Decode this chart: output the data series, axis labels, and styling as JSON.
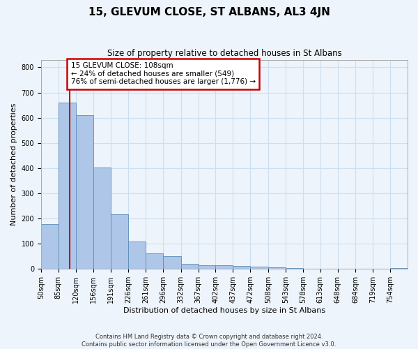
{
  "title": "15, GLEVUM CLOSE, ST ALBANS, AL3 4JN",
  "subtitle": "Size of property relative to detached houses in St Albans",
  "xlabel": "Distribution of detached houses by size in St Albans",
  "ylabel": "Number of detached properties",
  "footer_line1": "Contains HM Land Registry data © Crown copyright and database right 2024.",
  "footer_line2": "Contains public sector information licensed under the Open Government Licence v3.0.",
  "bin_labels": [
    "50sqm",
    "85sqm",
    "120sqm",
    "156sqm",
    "191sqm",
    "226sqm",
    "261sqm",
    "296sqm",
    "332sqm",
    "367sqm",
    "402sqm",
    "437sqm",
    "472sqm",
    "508sqm",
    "543sqm",
    "578sqm",
    "613sqm",
    "648sqm",
    "684sqm",
    "719sqm",
    "754sqm"
  ],
  "bin_edges": [
    50,
    85,
    120,
    156,
    191,
    226,
    261,
    296,
    332,
    367,
    402,
    437,
    472,
    508,
    543,
    578,
    613,
    648,
    684,
    719,
    754,
    789
  ],
  "bar_heights": [
    178,
    660,
    610,
    403,
    218,
    110,
    63,
    50,
    20,
    16,
    15,
    13,
    8,
    7,
    5,
    0,
    0,
    0,
    0,
    0,
    5
  ],
  "bar_color": "#aec6e8",
  "bar_edge_color": "#5b8db8",
  "grid_color": "#ccdff0",
  "background_color": "#eef4fb",
  "vline_x": 108,
  "annotation_text": "15 GLEVUM CLOSE: 108sqm\n← 24% of detached houses are smaller (549)\n76% of semi-detached houses are larger (1,776) →",
  "annotation_box_facecolor": "#ffffff",
  "annotation_box_edgecolor": "#cc0000",
  "vline_color": "#cc0000",
  "ylim": [
    0,
    830
  ],
  "yticks": [
    0,
    100,
    200,
    300,
    400,
    500,
    600,
    700,
    800
  ],
  "title_fontsize": 11,
  "subtitle_fontsize": 8.5,
  "tick_fontsize": 7,
  "ylabel_fontsize": 8,
  "xlabel_fontsize": 8,
  "annotation_fontsize": 7.5,
  "footer_fontsize": 6
}
